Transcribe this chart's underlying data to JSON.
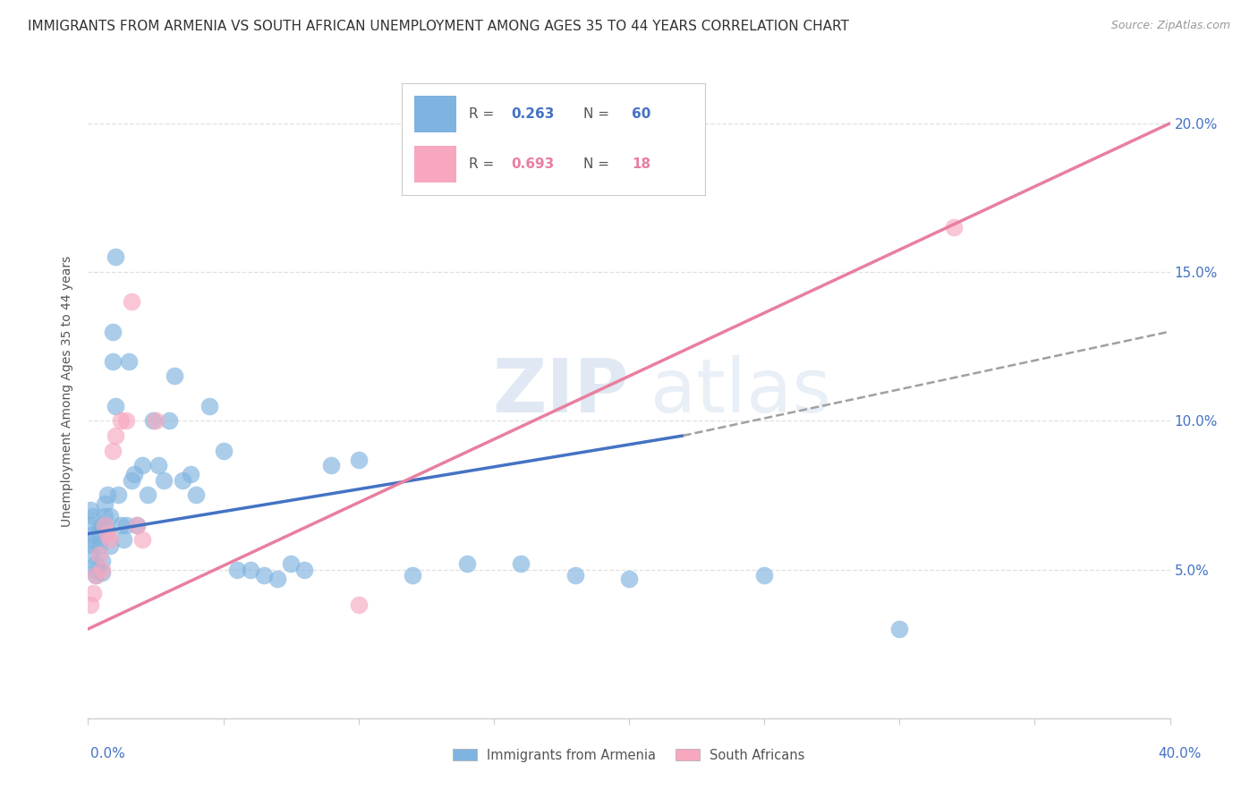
{
  "title": "IMMIGRANTS FROM ARMENIA VS SOUTH AFRICAN UNEMPLOYMENT AMONG AGES 35 TO 44 YEARS CORRELATION CHART",
  "source": "Source: ZipAtlas.com",
  "ylabel": "Unemployment Among Ages 35 to 44 years",
  "right_yticks": [
    0.0,
    0.05,
    0.1,
    0.15,
    0.2
  ],
  "right_yticklabels": [
    "",
    "5.0%",
    "10.0%",
    "15.0%",
    "20.0%"
  ],
  "xlim": [
    0.0,
    0.4
  ],
  "ylim": [
    0.0,
    0.22
  ],
  "blue_color": "#7fb3e0",
  "pink_color": "#f7a8bf",
  "blue_line_color": "#4472c4",
  "pink_line_color": "#e87fa0",
  "dashed_line_color": "#a0a0a0",
  "blue_scatter_x": [
    0.001,
    0.001,
    0.001,
    0.002,
    0.002,
    0.002,
    0.002,
    0.003,
    0.003,
    0.003,
    0.004,
    0.004,
    0.005,
    0.005,
    0.005,
    0.006,
    0.006,
    0.007,
    0.007,
    0.008,
    0.008,
    0.009,
    0.009,
    0.01,
    0.01,
    0.011,
    0.012,
    0.013,
    0.014,
    0.015,
    0.016,
    0.017,
    0.018,
    0.02,
    0.022,
    0.024,
    0.026,
    0.028,
    0.03,
    0.032,
    0.035,
    0.038,
    0.04,
    0.045,
    0.05,
    0.055,
    0.06,
    0.065,
    0.07,
    0.075,
    0.08,
    0.09,
    0.1,
    0.12,
    0.14,
    0.16,
    0.18,
    0.2,
    0.25,
    0.3
  ],
  "blue_scatter_y": [
    0.065,
    0.07,
    0.055,
    0.068,
    0.06,
    0.062,
    0.058,
    0.052,
    0.05,
    0.048,
    0.063,
    0.058,
    0.065,
    0.053,
    0.049,
    0.068,
    0.072,
    0.075,
    0.063,
    0.058,
    0.068,
    0.13,
    0.12,
    0.155,
    0.105,
    0.075,
    0.065,
    0.06,
    0.065,
    0.12,
    0.08,
    0.082,
    0.065,
    0.085,
    0.075,
    0.1,
    0.085,
    0.08,
    0.1,
    0.115,
    0.08,
    0.082,
    0.075,
    0.105,
    0.09,
    0.05,
    0.05,
    0.048,
    0.047,
    0.052,
    0.05,
    0.085,
    0.087,
    0.048,
    0.052,
    0.052,
    0.048,
    0.047,
    0.048,
    0.03
  ],
  "pink_scatter_x": [
    0.001,
    0.002,
    0.003,
    0.004,
    0.005,
    0.006,
    0.007,
    0.008,
    0.009,
    0.01,
    0.012,
    0.014,
    0.016,
    0.018,
    0.02,
    0.025,
    0.1,
    0.32
  ],
  "pink_scatter_y": [
    0.038,
    0.042,
    0.048,
    0.055,
    0.05,
    0.065,
    0.062,
    0.06,
    0.09,
    0.095,
    0.1,
    0.1,
    0.14,
    0.065,
    0.06,
    0.1,
    0.038,
    0.165
  ],
  "blue_line_x0": 0.0,
  "blue_line_y0": 0.062,
  "blue_line_x1": 0.22,
  "blue_line_y1": 0.095,
  "dashed_line_x0": 0.22,
  "dashed_line_y0": 0.095,
  "dashed_line_x1": 0.4,
  "dashed_line_y1": 0.13,
  "pink_line_x0": 0.0,
  "pink_line_y0": 0.03,
  "pink_line_x1": 0.4,
  "pink_line_y1": 0.2,
  "grid_color": "#e0e0e0",
  "background_color": "#ffffff",
  "title_fontsize": 11,
  "source_fontsize": 9,
  "axis_label_fontsize": 10,
  "tick_fontsize": 11
}
